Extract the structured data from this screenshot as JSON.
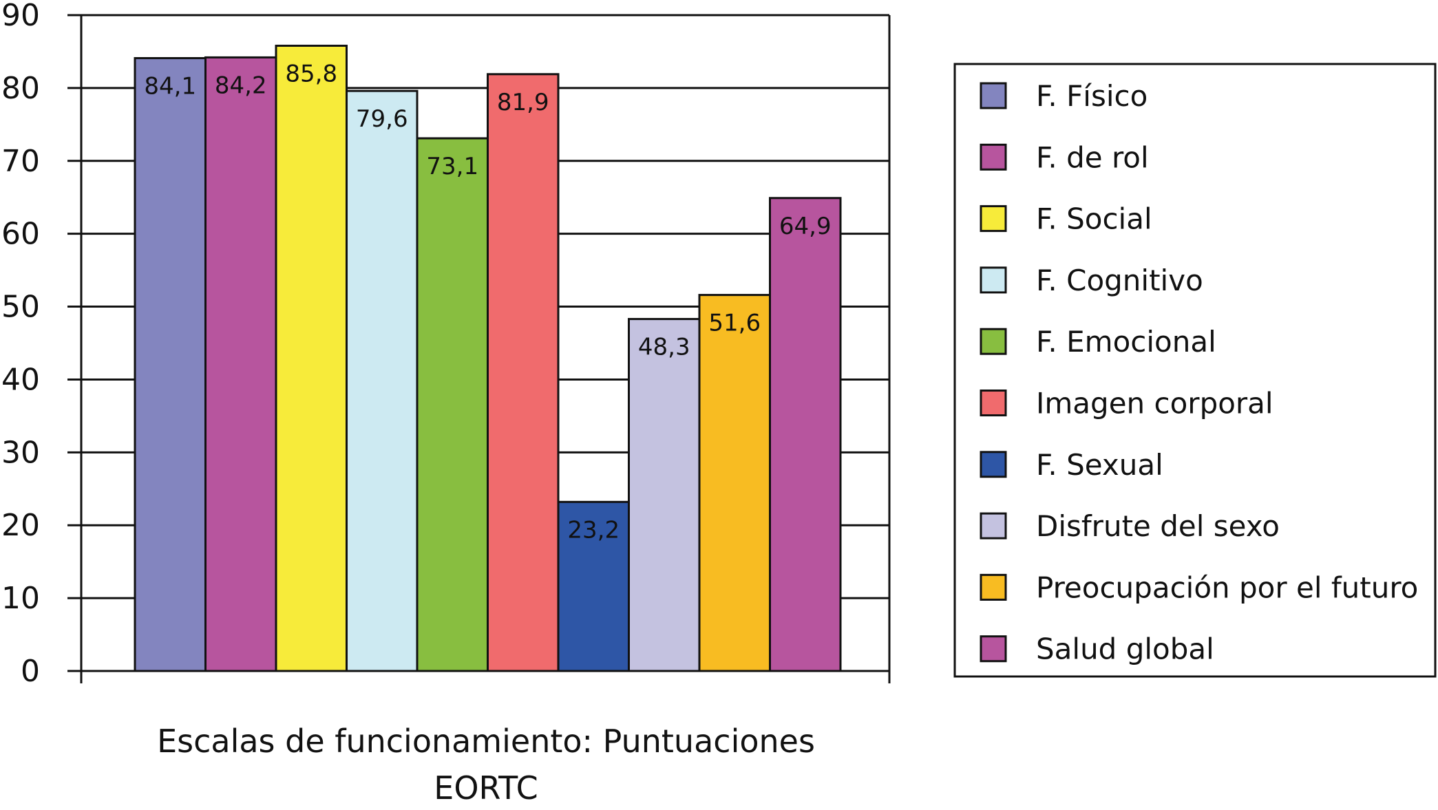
{
  "chart_data": {
    "type": "bar",
    "xlabel_lines": [
      "Escalas de funcionamiento: Puntuaciones",
      "EORTC"
    ],
    "ylim": [
      0,
      90
    ],
    "yticks": [
      0,
      10,
      20,
      30,
      40,
      50,
      60,
      70,
      80,
      90
    ],
    "grid": true,
    "legend_position": "right",
    "categories": [
      "F. Físico",
      "F. de rol",
      "F. Social",
      "F. Cognitivo",
      "F. Emocional",
      "Imagen corporal",
      "F. Sexual",
      "Disfrute del sexo",
      "Preocupación por el futuro",
      "Salud global"
    ],
    "values": [
      84.1,
      84.2,
      85.8,
      79.6,
      73.1,
      81.9,
      23.2,
      48.3,
      51.6,
      64.9
    ],
    "value_labels": [
      "84,1",
      "84,2",
      "85,8",
      "79,6",
      "73,1",
      "81,9",
      "23,2",
      "48,3",
      "51,6",
      "64,9"
    ],
    "colors": [
      "#8385BF",
      "#B7559E",
      "#F7EB3A",
      "#CDEAF2",
      "#88BE40",
      "#F06B6D",
      "#2E56A6",
      "#C4C2E0",
      "#F8BC22",
      "#B7559E"
    ]
  }
}
